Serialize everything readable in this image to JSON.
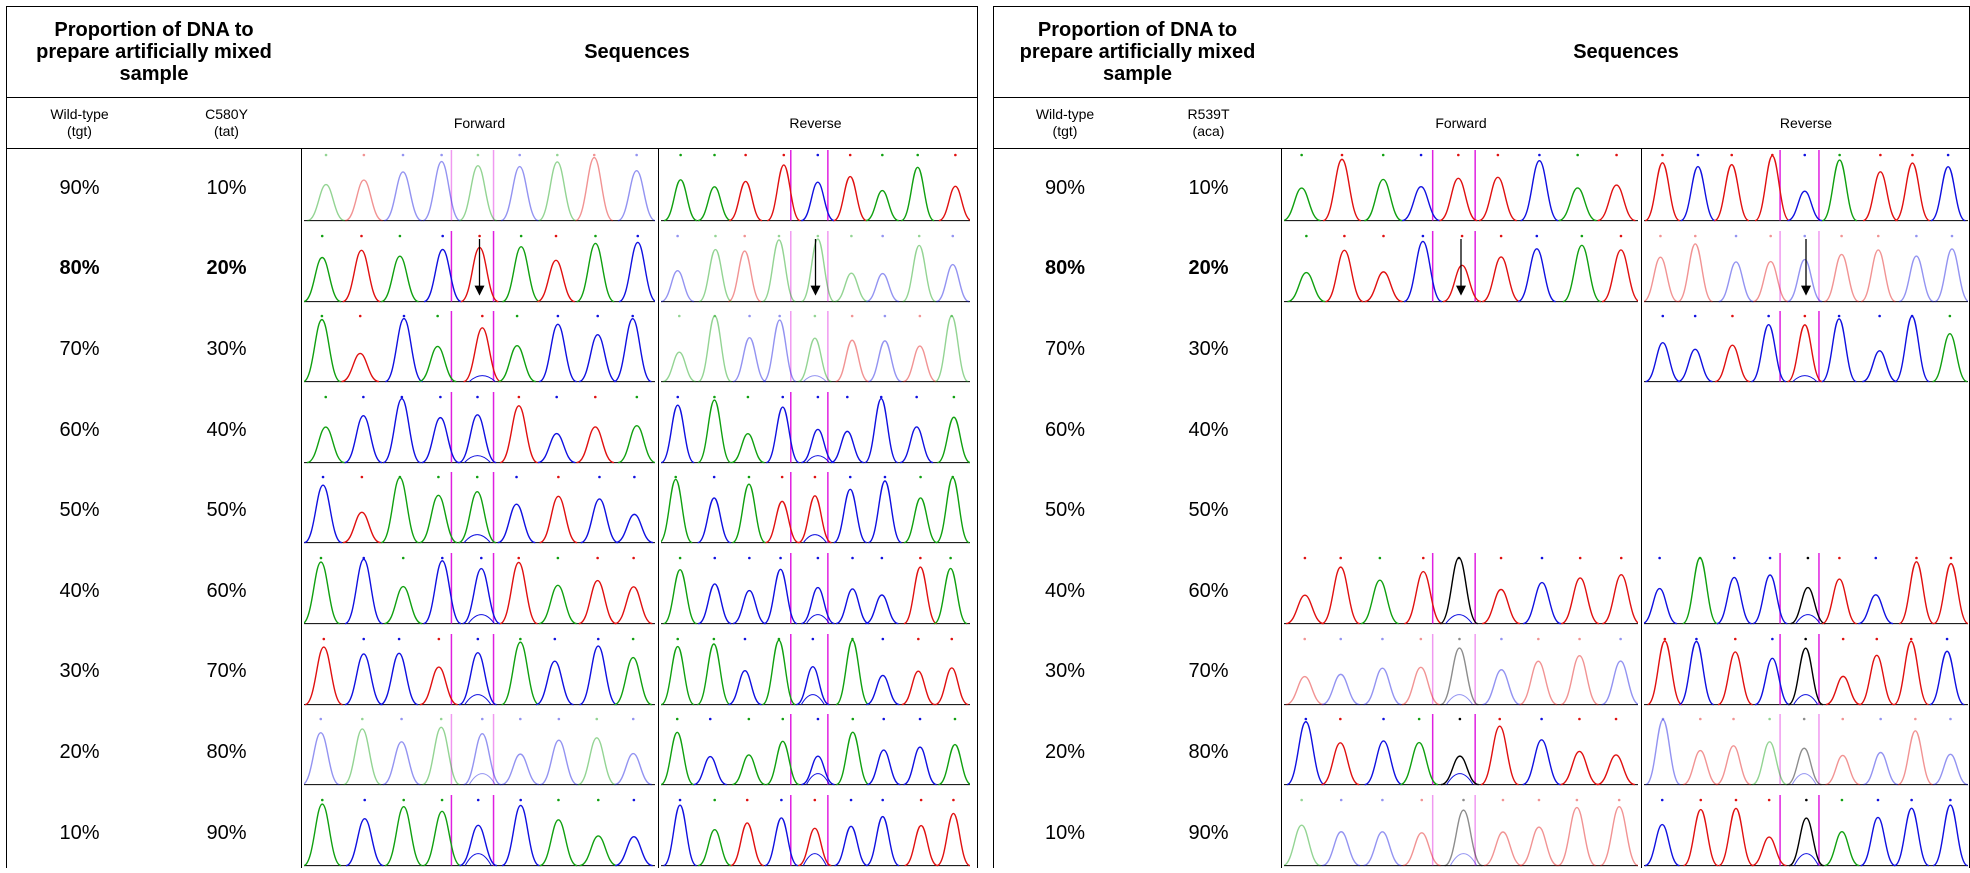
{
  "tables": [
    {
      "header": {
        "proportion": "Proportion of DNA to prepare artificially mixed sample",
        "sequences": "Sequences"
      },
      "subheaders": {
        "wild_type": "Wild-type",
        "wild_type_codon": "(tgt)",
        "mutant": "C580Y",
        "mutant_codon": "(tat)",
        "forward": "Forward",
        "reverse": "Reverse"
      },
      "rows": [
        [
          "90%",
          "10%"
        ],
        [
          "80%",
          "20%"
        ],
        [
          "70%",
          "30%"
        ],
        [
          "60%",
          "40%"
        ],
        [
          "50%",
          "50%"
        ],
        [
          "40%",
          "60%"
        ],
        [
          "30%",
          "70%"
        ],
        [
          "20%",
          "80%"
        ],
        [
          "10%",
          "90%"
        ]
      ]
    },
    {
      "header": {
        "proportion": "Proportion of DNA to prepare artificially mixed sample",
        "sequences": "Sequences"
      },
      "subheaders": {
        "wild_type": "Wild-type",
        "wild_type_codon": "(tgt)",
        "mutant": "R539T",
        "mutant_codon": "(aca)",
        "forward": "Forward",
        "reverse": "Reverse"
      },
      "rows": [
        [
          "90%",
          "10%"
        ],
        [
          "80%",
          "20%"
        ],
        [
          "70%",
          "30%"
        ],
        [
          "60%",
          "40%"
        ],
        [
          "50%",
          "50%"
        ],
        [
          "40%",
          "60%"
        ],
        [
          "30%",
          "70%"
        ],
        [
          "20%",
          "80%"
        ],
        [
          "10%",
          "90%"
        ]
      ]
    }
  ]
}
